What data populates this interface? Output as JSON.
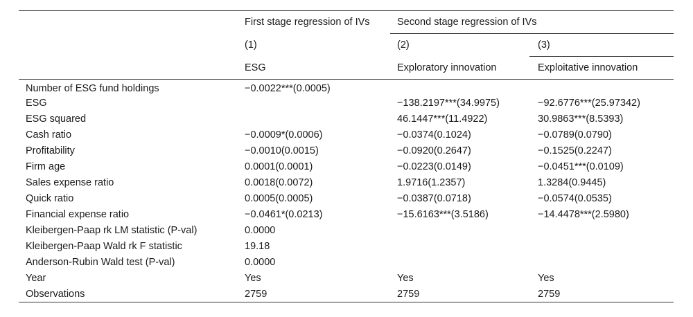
{
  "header": {
    "group_first": "First stage regression of IVs",
    "group_second": "Second stage regression of IVs",
    "col_numbers": [
      "(1)",
      "(2)",
      "(3)"
    ],
    "col_labels": [
      "ESG",
      "Exploratory innovation",
      "Exploitative innovation"
    ]
  },
  "rows": [
    {
      "label": "Number of ESG fund holdings",
      "c1": "−0.0022***(0.0005)",
      "c2": "",
      "c3": ""
    },
    {
      "label": "ESG",
      "c1": "",
      "c2": "−138.2197***(34.9975)",
      "c3": "−92.6776***(25.97342)"
    },
    {
      "label": "ESG squared",
      "c1": "",
      "c2": "46.1447***(11.4922)",
      "c3": "30.9863***(8.5393)"
    },
    {
      "label": "Cash ratio",
      "c1": "−0.0009*(0.0006)",
      "c2": "−0.0374(0.1024)",
      "c3": "−0.0789(0.0790)"
    },
    {
      "label": "Profitability",
      "c1": "−0.0010(0.0015)",
      "c2": "−0.0920(0.2647)",
      "c3": "−0.1525(0.2247)"
    },
    {
      "label": "Firm age",
      "c1": "0.0001(0.0001)",
      "c2": "−0.0223(0.0149)",
      "c3": "−0.0451***(0.0109)"
    },
    {
      "label": "Sales expense ratio",
      "c1": "0.0018(0.0072)",
      "c2": "1.9716(1.2357)",
      "c3": "1.3284(0.9445)"
    },
    {
      "label": "Quick ratio",
      "c1": "0.0005(0.0005)",
      "c2": "−0.0387(0.0718)",
      "c3": "−0.0574(0.0535)"
    },
    {
      "label": "Financial expense ratio",
      "c1": "−0.0461*(0.0213)",
      "c2": "−15.6163***(3.5186)",
      "c3": "−14.4478***(2.5980)"
    },
    {
      "label": "Kleibergen-Paap rk LM statistic (P-val)",
      "c1": "0.0000",
      "c2": "",
      "c3": ""
    },
    {
      "label": "Kleibergen-Paap Wald rk F statistic",
      "c1": "19.18",
      "c2": "",
      "c3": ""
    },
    {
      "label": "Anderson-Rubin Wald test (P-val)",
      "c1": "0.0000",
      "c2": "",
      "c3": ""
    },
    {
      "label": "Year",
      "c1": "Yes",
      "c2": "Yes",
      "c3": "Yes"
    },
    {
      "label": "Observations",
      "c1": "2759",
      "c2": "2759",
      "c3": "2759"
    }
  ]
}
